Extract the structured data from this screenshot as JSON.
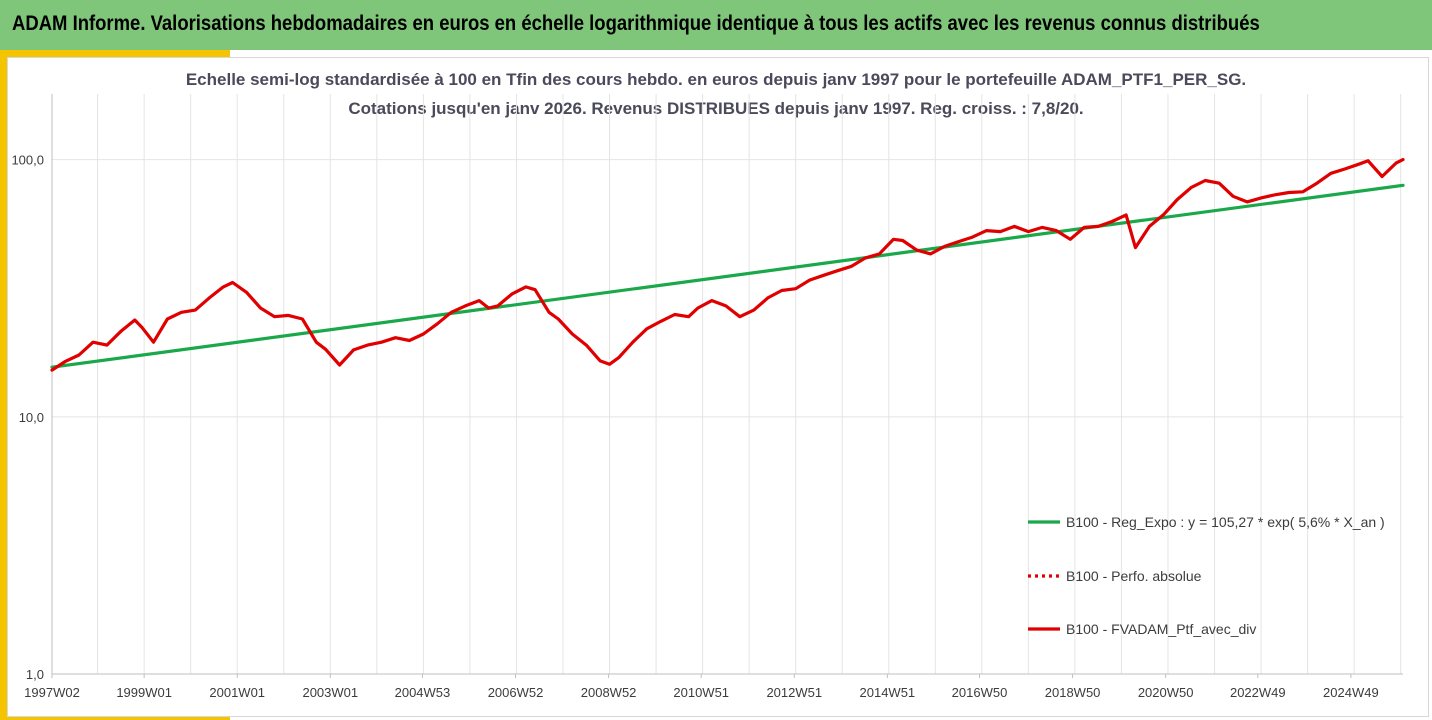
{
  "header": {
    "title": "ADAM Informe. Valorisations hebdomadaires en euros en échelle logarithmique identique à tous les actifs avec les revenus connus distribués"
  },
  "chart_data": {
    "type": "line",
    "title_line1": "Echelle semi-log standardisée à 100 en Tfin des cours hebdo. en euros depuis janv 1997 pour le portefeuille ADAM_PTF1_PER_SG.",
    "title_line2": "Cotations jusqu'en janv 2026. Revenus DISTRIBUES depuis janv 1997. Reg. croiss. : 7,8/20.",
    "y_scale": "log",
    "ylim": [
      1,
      180
    ],
    "xlim": [
      1997.02,
      2026.05
    ],
    "y_ticks": [
      {
        "value": 1,
        "label": "1,0"
      },
      {
        "value": 10,
        "label": "10,0"
      },
      {
        "value": 100,
        "label": "100,0"
      }
    ],
    "x_ticks": [
      {
        "value": 1997.02,
        "label": "1997W02"
      },
      {
        "value": 1999.0,
        "label": "1999W01"
      },
      {
        "value": 2001.0,
        "label": "2001W01"
      },
      {
        "value": 2003.0,
        "label": "2003W01"
      },
      {
        "value": 2004.98,
        "label": "2004W53"
      },
      {
        "value": 2006.98,
        "label": "2006W52"
      },
      {
        "value": 2008.98,
        "label": "2008W52"
      },
      {
        "value": 2010.97,
        "label": "2010W51"
      },
      {
        "value": 2012.97,
        "label": "2012W51"
      },
      {
        "value": 2014.97,
        "label": "2014W51"
      },
      {
        "value": 2016.95,
        "label": "2016W50"
      },
      {
        "value": 2018.95,
        "label": "2018W50"
      },
      {
        "value": 2020.95,
        "label": "2020W50"
      },
      {
        "value": 2022.93,
        "label": "2022W49"
      },
      {
        "value": 2024.93,
        "label": "2024W49"
      }
    ],
    "grid": "vertical",
    "legend_position": "bottom-right",
    "series": [
      {
        "name": "B100 - Reg_Expo : y = 105,27 * exp( 5,6% * X_an )",
        "color": "#1aa84a",
        "style": "solid",
        "x": [
          1997.02,
          2026.05
        ],
        "y": [
          15.6,
          79.5
        ]
      },
      {
        "name": "B100 - Perfo. absolue",
        "color": "#e00000",
        "style": "dotted",
        "x": [],
        "y": []
      },
      {
        "name": "B100 - FVADAM_Ptf_avec_div",
        "color": "#e00000",
        "style": "solid",
        "x": [
          1997.02,
          1997.3,
          1997.6,
          1997.9,
          1998.2,
          1998.5,
          1998.8,
          1998.95,
          1999.2,
          1999.5,
          1999.8,
          2000.1,
          2000.4,
          2000.7,
          2000.9,
          2001.2,
          2001.5,
          2001.8,
          2002.1,
          2002.4,
          2002.7,
          2002.9,
          2003.2,
          2003.5,
          2003.8,
          2004.1,
          2004.4,
          2004.7,
          2005.0,
          2005.3,
          2005.6,
          2005.9,
          2006.2,
          2006.4,
          2006.6,
          2006.9,
          2007.2,
          2007.4,
          2007.7,
          2007.9,
          2008.2,
          2008.5,
          2008.8,
          2009.0,
          2009.2,
          2009.5,
          2009.8,
          2010.1,
          2010.4,
          2010.7,
          2010.9,
          2011.2,
          2011.5,
          2011.8,
          2012.1,
          2012.4,
          2012.7,
          2013.0,
          2013.3,
          2013.6,
          2013.9,
          2014.2,
          2014.5,
          2014.8,
          2015.1,
          2015.3,
          2015.6,
          2015.9,
          2016.2,
          2016.5,
          2016.8,
          2017.1,
          2017.4,
          2017.7,
          2018.0,
          2018.3,
          2018.6,
          2018.9,
          2019.2,
          2019.5,
          2019.8,
          2020.1,
          2020.3,
          2020.6,
          2020.9,
          2021.2,
          2021.5,
          2021.8,
          2022.1,
          2022.4,
          2022.7,
          2023.0,
          2023.3,
          2023.6,
          2023.9,
          2024.2,
          2024.5,
          2024.8,
          2025.1,
          2025.3,
          2025.6,
          2025.9,
          2026.05
        ],
        "y": [
          15.2,
          16.4,
          17.4,
          19.5,
          19.0,
          21.5,
          23.8,
          22.3,
          19.5,
          24.0,
          25.5,
          26.0,
          29.0,
          32.0,
          33.3,
          30.5,
          26.5,
          24.5,
          24.8,
          24.0,
          19.5,
          18.3,
          15.9,
          18.2,
          19.0,
          19.5,
          20.3,
          19.8,
          21.0,
          23.0,
          25.5,
          27.0,
          28.3,
          26.5,
          27.0,
          30.0,
          32.0,
          31.2,
          25.5,
          24.0,
          21.0,
          19.0,
          16.5,
          16.0,
          17.0,
          19.5,
          22.0,
          23.5,
          25.0,
          24.5,
          26.5,
          28.3,
          27.0,
          24.5,
          26.0,
          29.0,
          31.0,
          31.5,
          34.0,
          35.5,
          37.0,
          38.5,
          41.5,
          43.0,
          49.0,
          48.5,
          44.5,
          43.0,
          46.0,
          48.0,
          50.0,
          53.0,
          52.5,
          55.0,
          52.5,
          54.5,
          53.0,
          49.0,
          54.5,
          55.0,
          57.5,
          61.0,
          45.5,
          55.0,
          61.0,
          70.0,
          78.0,
          83.0,
          81.0,
          72.0,
          68.5,
          71.0,
          73.0,
          74.5,
          75.0,
          81.0,
          88.5,
          92.0,
          96.0,
          99.0,
          86.0,
          97.0,
          100.0
        ]
      }
    ]
  }
}
